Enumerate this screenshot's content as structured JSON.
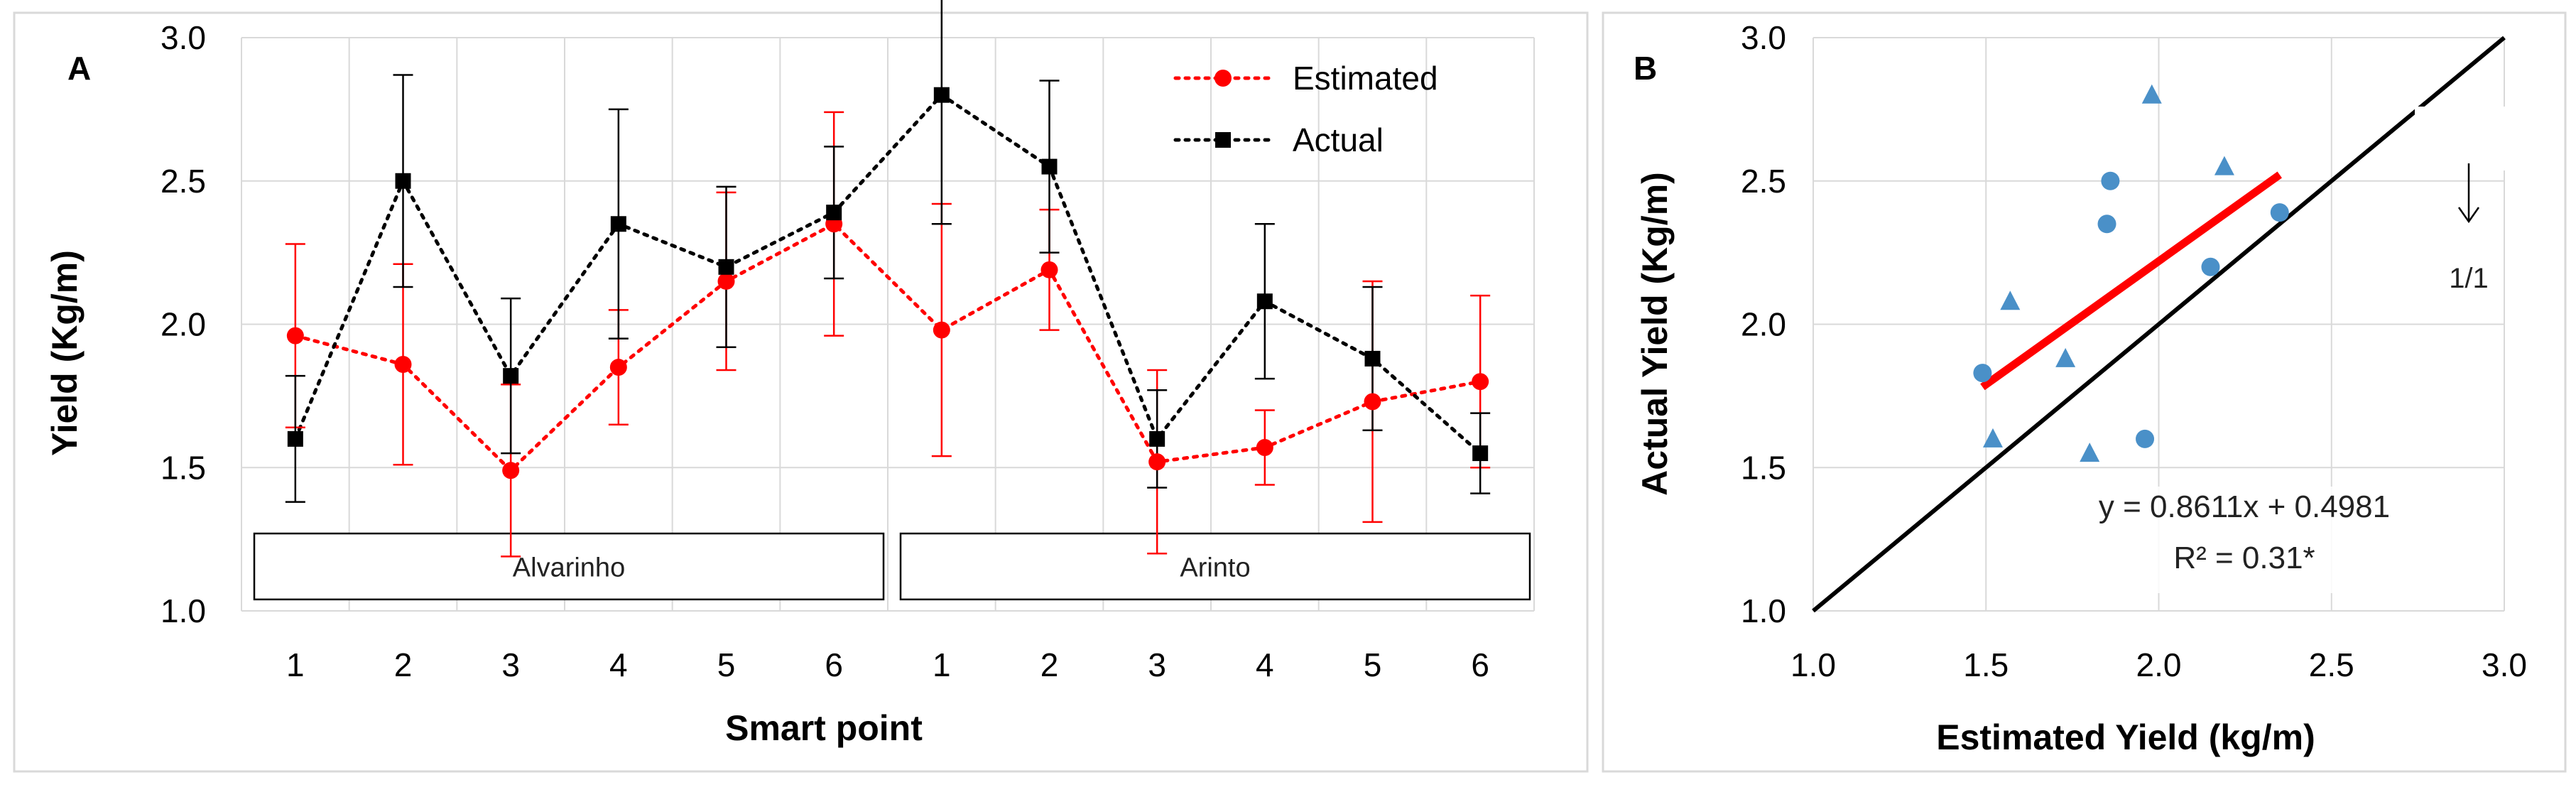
{
  "chart_data": [
    {
      "panel": "A",
      "type": "line",
      "title": "",
      "xlabel": "Smart point",
      "ylabel": "Yield (Kg/m)",
      "ylim": [
        1.0,
        3.0
      ],
      "yticks": [
        "1.0",
        "1.5",
        "2.0",
        "2.5",
        "3.0"
      ],
      "categories": [
        "1",
        "2",
        "3",
        "4",
        "5",
        "6",
        "1",
        "2",
        "3",
        "4",
        "5",
        "6"
      ],
      "groups": [
        {
          "label": "Alvarinho",
          "from": 0,
          "to": 5
        },
        {
          "label": "Arinto",
          "from": 6,
          "to": 11
        }
      ],
      "legend_position": "top-right",
      "series": [
        {
          "name": "Estimated",
          "color": "#ff0000",
          "marker": "circle",
          "values": [
            1.96,
            1.86,
            1.49,
            1.85,
            2.15,
            2.35,
            1.98,
            2.19,
            1.52,
            1.57,
            1.73,
            1.8
          ],
          "err": [
            0.32,
            0.35,
            0.3,
            0.2,
            0.31,
            0.39,
            0.44,
            0.21,
            0.32,
            0.13,
            0.42,
            0.3
          ]
        },
        {
          "name": "Actual",
          "color": "#000000",
          "marker": "square",
          "values": [
            1.6,
            2.5,
            1.82,
            2.35,
            2.2,
            2.39,
            2.8,
            2.55,
            1.6,
            2.08,
            1.88,
            1.55
          ],
          "err": [
            0.22,
            0.37,
            0.27,
            0.4,
            0.28,
            0.23,
            0.45,
            0.3,
            0.17,
            0.27,
            0.25,
            0.14
          ]
        }
      ]
    },
    {
      "panel": "B",
      "type": "scatter",
      "title": "",
      "xlabel": "Estimated Yield (kg/m)",
      "ylabel": "Actual Yield (Kg/m)",
      "xlim": [
        1.0,
        3.0
      ],
      "ylim": [
        1.0,
        3.0
      ],
      "xticks": [
        "1.0",
        "1.5",
        "2.0",
        "2.5",
        "3.0"
      ],
      "yticks": [
        "1.0",
        "1.5",
        "2.0",
        "2.5",
        "3.0"
      ],
      "marker_color": "#4a90c8",
      "series": [
        {
          "name": "Alvarinho",
          "marker": "circle",
          "x": [
            1.49,
            1.86,
            1.85,
            1.96,
            2.15,
            2.35
          ],
          "y": [
            1.83,
            2.5,
            2.35,
            1.6,
            2.2,
            2.39
          ]
        },
        {
          "name": "Arinto",
          "marker": "triangle",
          "x": [
            1.52,
            1.57,
            1.73,
            1.8,
            1.98,
            2.19
          ],
          "y": [
            1.6,
            2.08,
            1.88,
            1.55,
            2.8,
            2.55
          ]
        }
      ],
      "regression": {
        "slope": 0.8611,
        "intercept": 0.4981,
        "x_range": [
          1.49,
          2.35
        ],
        "color": "#ff0000",
        "equation": "y = 0.8611x + 0.4981",
        "r2": "R² = 0.31*"
      },
      "identity_line": {
        "from": [
          1.0,
          1.0
        ],
        "to": [
          3.0,
          3.0
        ],
        "color": "#000000",
        "label": "1/1"
      }
    }
  ]
}
